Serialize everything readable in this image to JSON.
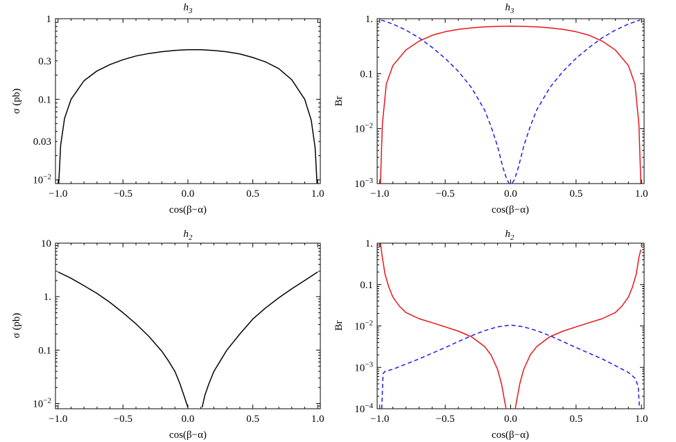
{
  "chart_data": [
    {
      "type": "line",
      "title": "h3",
      "xlabel": "cos(β−α)",
      "ylabel": "σ (pb)",
      "xlim": [
        -1.02,
        1.02
      ],
      "ylim": [
        0.009,
        1
      ],
      "yscale": "log",
      "x_ticks": [
        "−1.0",
        "−0.5",
        "0.0",
        "0.5",
        "1.0"
      ],
      "y_ticks": [
        "10−2",
        "0.03",
        "0.1",
        "0.3",
        "1"
      ],
      "series": [
        {
          "color": "#000000",
          "style": "solid",
          "x": [
            -0.995,
            -0.98,
            -0.95,
            -0.9,
            -0.8,
            -0.7,
            -0.6,
            -0.5,
            -0.4,
            -0.3,
            -0.2,
            -0.1,
            0.0,
            0.05,
            0.1,
            0.2,
            0.3,
            0.4,
            0.5,
            0.6,
            0.7,
            0.8,
            0.9,
            0.95,
            0.98,
            0.995
          ],
          "y": [
            0.009,
            0.027,
            0.058,
            0.1,
            0.17,
            0.225,
            0.27,
            0.31,
            0.345,
            0.37,
            0.39,
            0.405,
            0.412,
            0.413,
            0.412,
            0.403,
            0.388,
            0.365,
            0.33,
            0.29,
            0.24,
            0.175,
            0.1,
            0.055,
            0.025,
            0.009
          ]
        }
      ]
    },
    {
      "type": "line",
      "title": "h3",
      "xlabel": "cos(β−α)",
      "ylabel": "Br",
      "xlim": [
        -1.02,
        1.02
      ],
      "ylim": [
        0.001,
        1
      ],
      "yscale": "log",
      "x_ticks": [
        "−1.0",
        "−0.5",
        "0.0",
        "0.5",
        "1.0"
      ],
      "y_ticks": [
        "10−3",
        "10−2",
        "0.1",
        "1."
      ],
      "series": [
        {
          "color": "#e8141a",
          "style": "solid",
          "x": [
            -0.995,
            -0.98,
            -0.95,
            -0.9,
            -0.8,
            -0.7,
            -0.6,
            -0.5,
            -0.4,
            -0.3,
            -0.2,
            -0.1,
            0.0,
            0.1,
            0.2,
            0.3,
            0.4,
            0.5,
            0.6,
            0.7,
            0.8,
            0.9,
            0.95,
            0.98,
            0.995
          ],
          "y": [
            0.001,
            0.012,
            0.065,
            0.14,
            0.27,
            0.39,
            0.5,
            0.58,
            0.64,
            0.68,
            0.71,
            0.725,
            0.73,
            0.725,
            0.71,
            0.68,
            0.64,
            0.58,
            0.5,
            0.39,
            0.27,
            0.14,
            0.065,
            0.012,
            0.001
          ]
        },
        {
          "color": "#1a1aee",
          "style": "dashed",
          "x": [
            -0.99,
            -0.9,
            -0.8,
            -0.7,
            -0.6,
            -0.5,
            -0.4,
            -0.3,
            -0.2,
            -0.15,
            -0.1,
            -0.06,
            -0.03,
            -0.01,
            0.01,
            0.03,
            0.06,
            0.1,
            0.15,
            0.2,
            0.3,
            0.4,
            0.5,
            0.6,
            0.7,
            0.8,
            0.9,
            0.99
          ],
          "y": [
            0.95,
            0.8,
            0.62,
            0.45,
            0.3,
            0.19,
            0.11,
            0.056,
            0.022,
            0.011,
            0.0048,
            0.002,
            0.0012,
            0.001,
            0.001,
            0.0012,
            0.002,
            0.0048,
            0.011,
            0.022,
            0.056,
            0.11,
            0.19,
            0.3,
            0.45,
            0.62,
            0.8,
            0.95
          ]
        }
      ]
    },
    {
      "type": "line",
      "title": "h2",
      "xlabel": "cos(β−α)",
      "ylabel": "σ (pb)",
      "xlim": [
        -1.02,
        1.02
      ],
      "ylim": [
        0.008,
        10
      ],
      "yscale": "log",
      "x_ticks": [
        "−1.0",
        "−0.5",
        "0.0",
        "0.5",
        "1.0"
      ],
      "y_ticks": [
        "10−2",
        "0.1",
        "1.",
        "10"
      ],
      "series": [
        {
          "color": "#000000",
          "style": "solid",
          "x": [
            -1.0,
            -0.9,
            -0.8,
            -0.7,
            -0.6,
            -0.5,
            -0.4,
            -0.3,
            -0.2,
            -0.15,
            -0.1,
            -0.06,
            -0.03,
            0.0
          ],
          "y": [
            2.9,
            2.2,
            1.6,
            1.15,
            0.78,
            0.5,
            0.31,
            0.18,
            0.095,
            0.063,
            0.04,
            0.023,
            0.014,
            0.0085
          ]
        },
        {
          "color": "#000000",
          "style": "solid",
          "x": [
            0.11,
            0.13,
            0.16,
            0.2,
            0.25,
            0.3,
            0.4,
            0.5,
            0.6,
            0.7,
            0.8,
            0.9,
            1.0
          ],
          "y": [
            0.0085,
            0.014,
            0.023,
            0.04,
            0.063,
            0.1,
            0.2,
            0.38,
            0.62,
            0.95,
            1.4,
            2.0,
            2.9
          ]
        }
      ]
    },
    {
      "type": "line",
      "title": "h2",
      "xlabel": "cos(β−α)",
      "ylabel": "Br",
      "xlim": [
        -1.02,
        1.02
      ],
      "ylim": [
        0.0001,
        1
      ],
      "yscale": "log",
      "x_ticks": [
        "−1.0",
        "−0.5",
        "0.0",
        "0.5",
        "1.0"
      ],
      "y_ticks": [
        "10−4",
        "10−3",
        "10−2",
        "0.1",
        "1."
      ],
      "series": [
        {
          "color": "#e8141a",
          "style": "solid",
          "x": [
            -0.995,
            -0.98,
            -0.96,
            -0.93,
            -0.9,
            -0.85,
            -0.8,
            -0.7,
            -0.6,
            -0.5,
            -0.4,
            -0.3,
            -0.2,
            -0.15,
            -0.1,
            -0.07,
            -0.05,
            -0.035
          ],
          "y": [
            1.0,
            0.45,
            0.18,
            0.085,
            0.05,
            0.03,
            0.021,
            0.015,
            0.012,
            0.0095,
            0.0075,
            0.0055,
            0.0032,
            0.002,
            0.0009,
            0.0004,
            0.00018,
            0.0001
          ]
        },
        {
          "color": "#e8141a",
          "style": "solid",
          "x": [
            0.035,
            0.05,
            0.07,
            0.1,
            0.15,
            0.2,
            0.3,
            0.4,
            0.5,
            0.6,
            0.7,
            0.8,
            0.85,
            0.9,
            0.93,
            0.96,
            0.98,
            0.995
          ],
          "y": [
            0.0001,
            0.00018,
            0.0004,
            0.0009,
            0.002,
            0.0032,
            0.0055,
            0.0075,
            0.0095,
            0.012,
            0.015,
            0.021,
            0.03,
            0.05,
            0.085,
            0.18,
            0.45,
            0.7
          ]
        },
        {
          "color": "#1a1aee",
          "style": "dashed",
          "x": [
            -0.985,
            -0.975,
            -0.96,
            -0.9,
            -0.8,
            -0.7,
            -0.6,
            -0.5,
            -0.4,
            -0.3,
            -0.2,
            -0.1,
            0.0,
            0.1,
            0.2,
            0.3,
            0.4,
            0.5,
            0.6,
            0.7,
            0.8,
            0.9,
            0.95,
            0.975,
            0.985
          ],
          "y": [
            0.0001,
            0.0007,
            0.0008,
            0.0009,
            0.0012,
            0.0016,
            0.0022,
            0.003,
            0.0042,
            0.0058,
            0.0077,
            0.0095,
            0.0105,
            0.0095,
            0.0077,
            0.0058,
            0.0042,
            0.003,
            0.0022,
            0.0016,
            0.0011,
            0.00075,
            0.00055,
            0.00035,
            0.0001
          ]
        }
      ]
    }
  ]
}
